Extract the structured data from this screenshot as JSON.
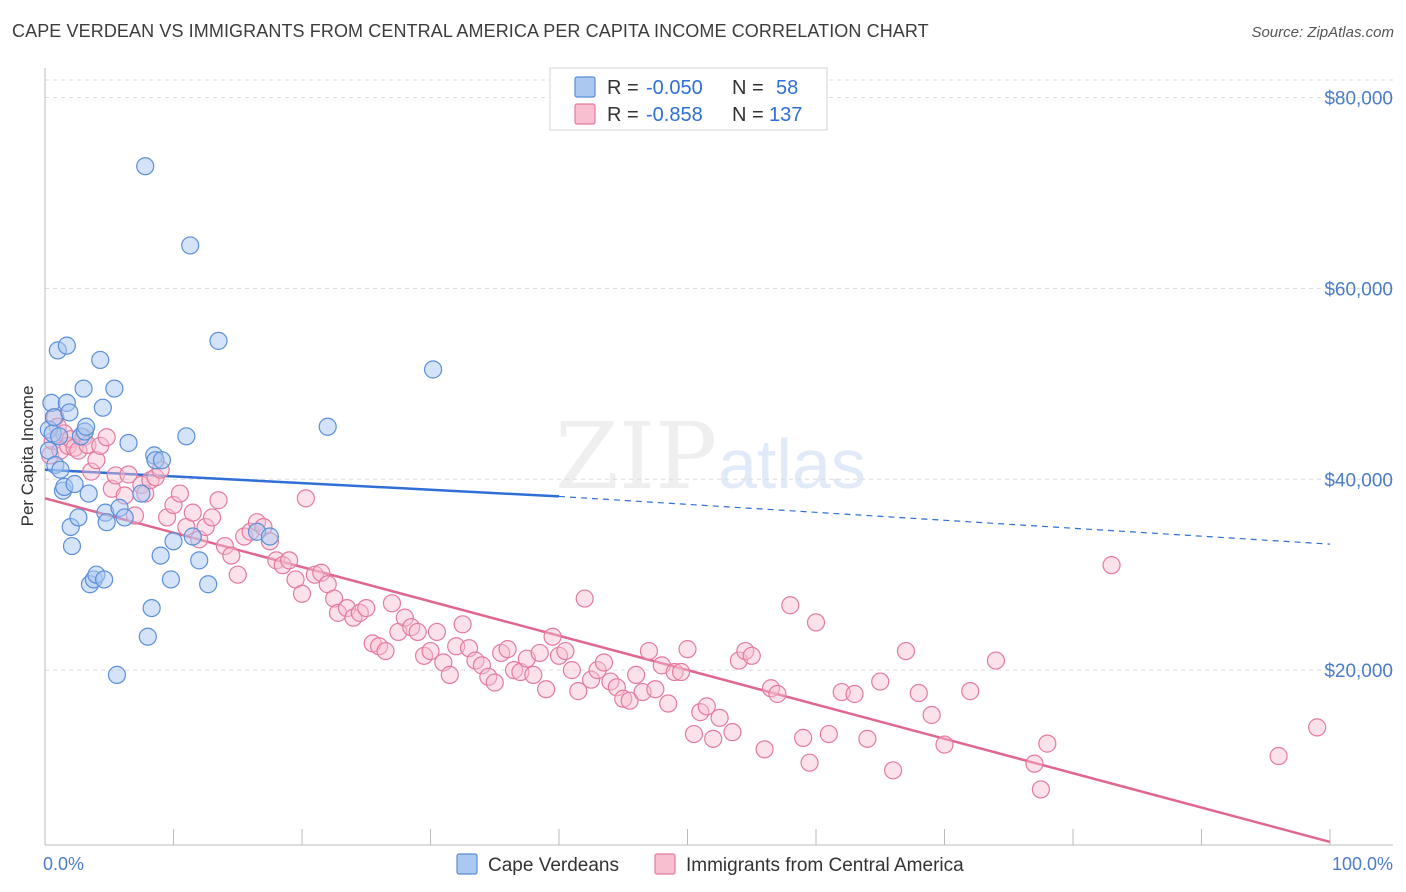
{
  "title": "CAPE VERDEAN VS IMMIGRANTS FROM CENTRAL AMERICA PER CAPITA INCOME CORRELATION CHART",
  "source": "Source: ZipAtlas.com",
  "watermark": {
    "zip": "ZIP",
    "atlas": "atlas"
  },
  "colors": {
    "blue_fill": "#aac8f0",
    "blue_stroke": "#5b8fd9",
    "blue_line": "#2f6fd6",
    "pink_fill": "#f7bfd0",
    "pink_stroke": "#e47aa0",
    "pink_line": "#e06690",
    "tick": "#4a7cc9",
    "grid": "#dcdcdc"
  },
  "legend": {
    "row1": {
      "r_label": "R =",
      "r_value": "-0.050",
      "n_label": "N =",
      "n_value": "58"
    },
    "row2": {
      "r_label": "R =",
      "r_value": "-0.858",
      "n_label": "N =",
      "n_value": "137"
    }
  },
  "bottom_legend": [
    "Cape Verdeans",
    "Immigrants from Central America"
  ],
  "chart_data": {
    "type": "scatter",
    "title": "CAPE VERDEAN VS IMMIGRANTS FROM CENTRAL AMERICA PER CAPITA INCOME CORRELATION CHART",
    "xlabel": "",
    "ylabel": "Per Capita Income",
    "xlim": [
      0,
      100
    ],
    "ylim": [
      0,
      80000
    ],
    "x_tick_labels": [
      "0.0%",
      "100.0%"
    ],
    "y_ticks": [
      20000,
      40000,
      60000,
      80000
    ],
    "y_tick_labels": [
      "$20,000",
      "$40,000",
      "$60,000",
      "$80,000"
    ],
    "grid": "horizontal dashed",
    "legend_position": "top-center",
    "series": [
      {
        "name": "Cape Verdeans",
        "r": -0.05,
        "n": 58,
        "trend": {
          "x0": 0,
          "y0": 41000,
          "x1": 40,
          "y1": 38200,
          "dashed_to_x": 100,
          "dashed_to_y": 33200
        },
        "points": [
          [
            0.3,
            45200
          ],
          [
            0.3,
            43000
          ],
          [
            0.5,
            48000
          ],
          [
            0.6,
            44800
          ],
          [
            0.7,
            46500
          ],
          [
            0.8,
            41500
          ],
          [
            1.0,
            53500
          ],
          [
            1.1,
            44500
          ],
          [
            1.2,
            41000
          ],
          [
            1.4,
            38800
          ],
          [
            1.5,
            39200
          ],
          [
            1.7,
            54000
          ],
          [
            1.7,
            48000
          ],
          [
            1.9,
            47000
          ],
          [
            2.0,
            35000
          ],
          [
            2.1,
            33000
          ],
          [
            2.3,
            39500
          ],
          [
            2.6,
            36000
          ],
          [
            2.8,
            44500
          ],
          [
            3.0,
            49500
          ],
          [
            3.1,
            45000
          ],
          [
            3.2,
            45500
          ],
          [
            3.4,
            38500
          ],
          [
            3.5,
            29000
          ],
          [
            3.8,
            29500
          ],
          [
            4.0,
            30000
          ],
          [
            4.3,
            52500
          ],
          [
            4.5,
            47500
          ],
          [
            4.6,
            29500
          ],
          [
            4.7,
            36500
          ],
          [
            4.8,
            35500
          ],
          [
            5.4,
            49500
          ],
          [
            5.6,
            19500
          ],
          [
            5.8,
            37000
          ],
          [
            6.2,
            36000
          ],
          [
            6.5,
            43800
          ],
          [
            7.5,
            38500
          ],
          [
            7.8,
            72800
          ],
          [
            8.0,
            23500
          ],
          [
            8.3,
            26500
          ],
          [
            8.5,
            42500
          ],
          [
            8.6,
            42000
          ],
          [
            9.0,
            32000
          ],
          [
            9.1,
            42000
          ],
          [
            9.8,
            29500
          ],
          [
            10.0,
            33500
          ],
          [
            11.0,
            44500
          ],
          [
            11.3,
            64500
          ],
          [
            11.5,
            34000
          ],
          [
            12.0,
            31500
          ],
          [
            12.7,
            29000
          ],
          [
            13.5,
            54500
          ],
          [
            16.5,
            34500
          ],
          [
            17.5,
            34000
          ],
          [
            22.0,
            45500
          ],
          [
            30.2,
            51500
          ]
        ]
      },
      {
        "name": "Immigrants from Central America",
        "r": -0.858,
        "n": 137,
        "trend": {
          "x0": 0,
          "y0": 38000,
          "x1": 100,
          "y1": 2000
        },
        "points": [
          [
            0.4,
            42500
          ],
          [
            0.6,
            44000
          ],
          [
            0.8,
            46500
          ],
          [
            1.0,
            45500
          ],
          [
            1.2,
            43000
          ],
          [
            1.5,
            44800
          ],
          [
            1.8,
            43500
          ],
          [
            2.0,
            44200
          ],
          [
            2.3,
            43300
          ],
          [
            2.6,
            43000
          ],
          [
            3.0,
            44400
          ],
          [
            3.3,
            43600
          ],
          [
            3.6,
            40800
          ],
          [
            4.0,
            42000
          ],
          [
            4.3,
            43500
          ],
          [
            4.8,
            44400
          ],
          [
            5.2,
            39000
          ],
          [
            5.5,
            40400
          ],
          [
            6.2,
            38300
          ],
          [
            6.5,
            40500
          ],
          [
            7.0,
            36200
          ],
          [
            7.5,
            39400
          ],
          [
            7.8,
            38500
          ],
          [
            8.2,
            39900
          ],
          [
            8.6,
            40200
          ],
          [
            9.0,
            41000
          ],
          [
            9.5,
            36000
          ],
          [
            10.0,
            37300
          ],
          [
            10.5,
            38500
          ],
          [
            11.0,
            35000
          ],
          [
            11.5,
            36500
          ],
          [
            12.0,
            33700
          ],
          [
            12.5,
            35000
          ],
          [
            13.0,
            36000
          ],
          [
            13.5,
            37800
          ],
          [
            14.0,
            33000
          ],
          [
            14.5,
            32000
          ],
          [
            15.0,
            30000
          ],
          [
            15.5,
            34000
          ],
          [
            16.0,
            34500
          ],
          [
            16.5,
            35500
          ],
          [
            17.0,
            35000
          ],
          [
            17.5,
            33500
          ],
          [
            18.0,
            31500
          ],
          [
            18.5,
            31000
          ],
          [
            19.0,
            31500
          ],
          [
            19.5,
            29500
          ],
          [
            20.0,
            28000
          ],
          [
            20.3,
            38000
          ],
          [
            21.0,
            30000
          ],
          [
            21.5,
            30200
          ],
          [
            22.0,
            29000
          ],
          [
            22.5,
            27500
          ],
          [
            22.8,
            26000
          ],
          [
            23.5,
            26500
          ],
          [
            24.0,
            25500
          ],
          [
            24.5,
            26000
          ],
          [
            25.0,
            26500
          ],
          [
            25.5,
            22800
          ],
          [
            26.0,
            22500
          ],
          [
            26.5,
            22000
          ],
          [
            27.0,
            27000
          ],
          [
            27.5,
            24000
          ],
          [
            28.0,
            25500
          ],
          [
            28.5,
            24500
          ],
          [
            29.0,
            24000
          ],
          [
            29.5,
            21500
          ],
          [
            30.0,
            22000
          ],
          [
            30.5,
            24000
          ],
          [
            31.0,
            20800
          ],
          [
            31.5,
            19500
          ],
          [
            32.0,
            22500
          ],
          [
            32.5,
            24800
          ],
          [
            33.0,
            22300
          ],
          [
            33.5,
            21000
          ],
          [
            34.0,
            20500
          ],
          [
            34.5,
            19300
          ],
          [
            35.0,
            18700
          ],
          [
            35.5,
            21800
          ],
          [
            36.0,
            22200
          ],
          [
            36.5,
            20000
          ],
          [
            37.0,
            19800
          ],
          [
            37.5,
            21200
          ],
          [
            38.0,
            19500
          ],
          [
            38.5,
            21800
          ],
          [
            39.0,
            18000
          ],
          [
            39.5,
            23500
          ],
          [
            40.0,
            21500
          ],
          [
            40.5,
            22000
          ],
          [
            41.0,
            20000
          ],
          [
            41.5,
            17800
          ],
          [
            42.0,
            27500
          ],
          [
            42.5,
            19000
          ],
          [
            43.0,
            20000
          ],
          [
            43.5,
            20800
          ],
          [
            44.0,
            18800
          ],
          [
            44.5,
            18200
          ],
          [
            45.0,
            17000
          ],
          [
            45.5,
            16800
          ],
          [
            46.0,
            19500
          ],
          [
            46.5,
            17700
          ],
          [
            47.0,
            22000
          ],
          [
            47.5,
            18000
          ],
          [
            48.0,
            20500
          ],
          [
            48.5,
            16500
          ],
          [
            49.0,
            19800
          ],
          [
            49.5,
            19800
          ],
          [
            50.0,
            22200
          ],
          [
            50.5,
            13300
          ],
          [
            51.0,
            15600
          ],
          [
            51.5,
            16200
          ],
          [
            52.0,
            12800
          ],
          [
            52.5,
            15000
          ],
          [
            53.5,
            13500
          ],
          [
            54.0,
            21000
          ],
          [
            54.5,
            22000
          ],
          [
            55.0,
            21500
          ],
          [
            56.0,
            11700
          ],
          [
            56.5,
            18100
          ],
          [
            57.0,
            17500
          ],
          [
            58.0,
            26800
          ],
          [
            59.0,
            12900
          ],
          [
            59.5,
            10300
          ],
          [
            60.0,
            25000
          ],
          [
            61.0,
            13300
          ],
          [
            62.0,
            17700
          ],
          [
            63.0,
            17500
          ],
          [
            64.0,
            12800
          ],
          [
            65.0,
            18800
          ],
          [
            66.0,
            9500
          ],
          [
            67.0,
            22000
          ],
          [
            68.0,
            17600
          ],
          [
            69.0,
            15300
          ],
          [
            70.0,
            12200
          ],
          [
            72.0,
            17800
          ],
          [
            74.0,
            21000
          ],
          [
            77.0,
            10200
          ],
          [
            77.5,
            7500
          ],
          [
            78.0,
            12300
          ],
          [
            83.0,
            31000
          ],
          [
            96.0,
            11000
          ],
          [
            99.0,
            14000
          ]
        ]
      }
    ]
  }
}
